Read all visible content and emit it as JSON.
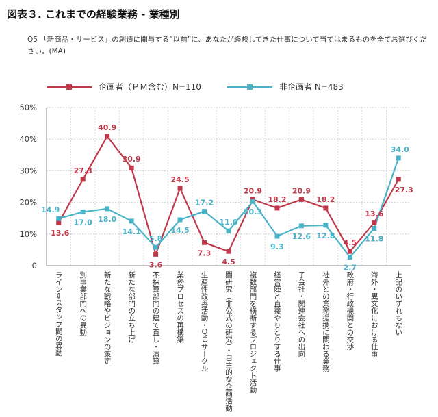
{
  "title": "図表３. これまでの経験業務 - 業種別",
  "question": {
    "number": "Q5",
    "text": "「新商品・サービス」の創造に関与する”以前”に、あなたが経験してきた仕事について当てはまるものを全てお選びください。(MA)"
  },
  "colors": {
    "planner": "#c0394b",
    "non_planner": "#4bb3c8"
  },
  "chart_data": {
    "type": "line",
    "categories": [
      "ライン⇔スタッフ間の異動",
      "別事業部門への異動",
      "新たな戦略やビジョンの策定",
      "新たな部門の立ち上げ",
      "不採算部門の建て直し・清算",
      "業務プロセスの再構築",
      "生産性改善活動・ＱＣサークル",
      "闇研究（非公式の研究）・自主的な企画活動",
      "複数部門を横断するプロジェクト活動",
      "経営陣と直接やりとりする仕事",
      "子会社・関連会社への出向",
      "社外との業務提携に関わる業務",
      "政府・行政機関との交渉",
      "海外・異文化における仕事",
      "上記のいずれもない"
    ],
    "series": [
      {
        "name": "企画者（ＰＭ含む）N=110",
        "color": "#c0394b",
        "values": [
          13.6,
          27.3,
          40.9,
          30.9,
          3.6,
          24.5,
          7.3,
          4.5,
          20.9,
          18.2,
          20.9,
          18.2,
          4.5,
          13.6,
          27.3
        ]
      },
      {
        "name": "非企画者 N=483",
        "color": "#4bb3c8",
        "values": [
          14.9,
          17.0,
          18.0,
          14.1,
          5.8,
          14.5,
          17.2,
          11.0,
          20.3,
          9.3,
          12.6,
          12.8,
          2.7,
          11.8,
          34.0
        ]
      }
    ],
    "yticks": [
      "50%",
      "40%",
      "30%",
      "20%",
      "10%",
      "0"
    ],
    "ylim": [
      0,
      50
    ],
    "grid": true,
    "legend_position": "top"
  }
}
